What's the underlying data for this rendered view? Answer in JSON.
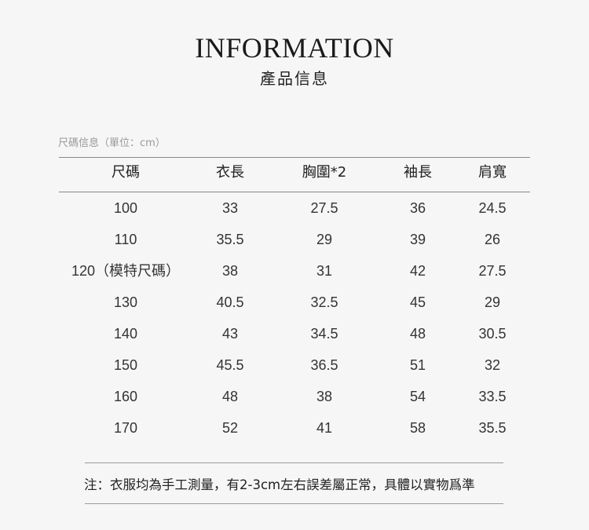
{
  "title": "INFORMATION",
  "subtitle": "產品信息",
  "caption": "尺碼信息（單位：cm）",
  "table": {
    "headers": [
      "尺碼",
      "衣長",
      "胸圍*2",
      "袖長",
      "肩寬"
    ],
    "rows": [
      [
        "100",
        "33",
        "27.5",
        "36",
        "24.5"
      ],
      [
        "110",
        "35.5",
        "29",
        "39",
        "26"
      ],
      [
        "120（模特尺碼）",
        "38",
        "31",
        "42",
        "27.5"
      ],
      [
        "130",
        "40.5",
        "32.5",
        "45",
        "29"
      ],
      [
        "140",
        "43",
        "34.5",
        "48",
        "30.5"
      ],
      [
        "150",
        "45.5",
        "36.5",
        "51",
        "32"
      ],
      [
        "160",
        "48",
        "38",
        "54",
        "33.5"
      ],
      [
        "170",
        "52",
        "41",
        "58",
        "35.5"
      ]
    ]
  },
  "note": "注：衣服均為手工測量，有2-3cm左右誤差屬正常，具體以實物爲準"
}
